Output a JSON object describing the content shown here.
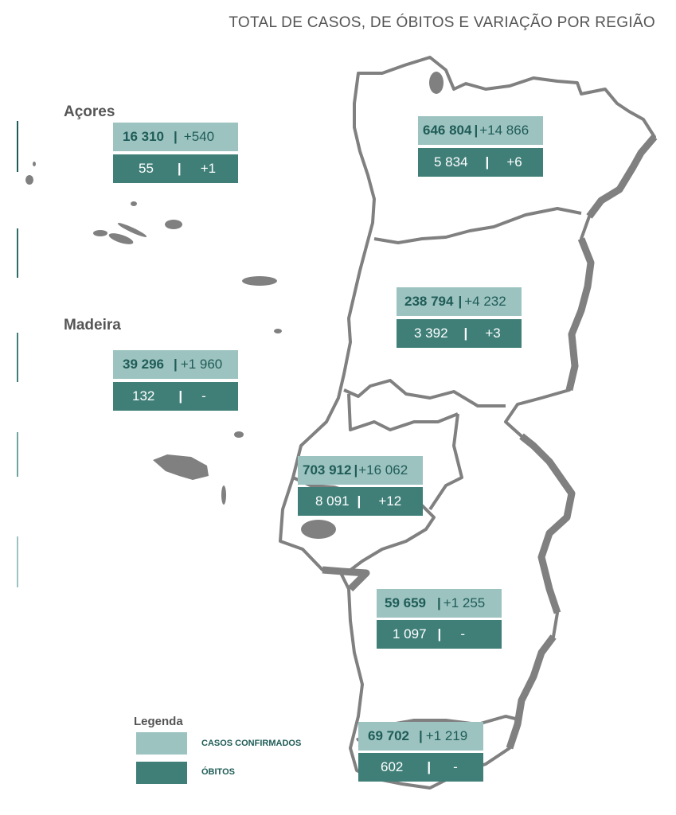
{
  "title": "TOTAL DE CASOS, DE ÓBITOS E VARIAÇÃO POR REGIÃO",
  "labels": {
    "acores": "Açores",
    "madeira": "Madeira"
  },
  "colors": {
    "cases": "#9cc3c0",
    "deaths": "#3f7f78",
    "map": "#808080"
  },
  "regions": {
    "acores": {
      "cases": "16 310",
      "cases_delta": "+540",
      "deaths": "55",
      "deaths_delta": "+1"
    },
    "madeira": {
      "cases": "39 296",
      "cases_delta": "+1 960",
      "deaths": "132",
      "deaths_delta": "-"
    },
    "norte": {
      "cases": "646 804",
      "cases_delta": "+14 866",
      "deaths": "5 834",
      "deaths_delta": "+6"
    },
    "centro": {
      "cases": "238 794",
      "cases_delta": "+4 232",
      "deaths": "3 392",
      "deaths_delta": "+3"
    },
    "lvt": {
      "cases": "703 912",
      "cases_delta": "+16 062",
      "deaths": "8 091",
      "deaths_delta": "+12"
    },
    "alentejo": {
      "cases": "59 659",
      "cases_delta": "+1 255",
      "deaths": "1 097",
      "deaths_delta": "-"
    },
    "algarve": {
      "cases": "69 702",
      "cases_delta": "+1 219",
      "deaths": "602",
      "deaths_delta": "-"
    }
  },
  "legend": {
    "title": "Legenda",
    "cases": "CASOS CONFIRMADOS",
    "deaths": "ÓBITOS"
  }
}
